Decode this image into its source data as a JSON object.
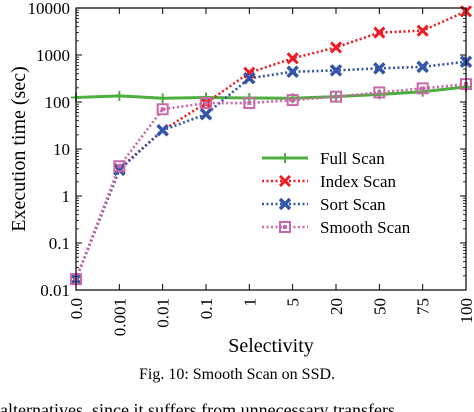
{
  "chart_data": {
    "type": "line",
    "xlabel": "Selectivity",
    "ylabel": "Execution time (sec)",
    "categories": [
      "0.0",
      "0.001",
      "0.01",
      "0.1",
      "1",
      "5",
      "20",
      "50",
      "75",
      "100"
    ],
    "y_scale": "log",
    "ylim": [
      0.01,
      10000
    ],
    "y_ticks": [
      "0.01",
      "0.1",
      "1",
      "10",
      "100",
      "1000",
      "10000"
    ],
    "grid": false,
    "legend_position": "center-right",
    "series": [
      {
        "name": "Full Scan",
        "color": "#4caf3e",
        "style": "solid",
        "marker": "plus",
        "values": [
          125,
          135,
          120,
          125,
          122,
          120,
          130,
          145,
          165,
          210
        ]
      },
      {
        "name": "Index Scan",
        "color": "#ee1c25",
        "style": "dotted",
        "marker": "x",
        "values": [
          0.017,
          3.8,
          25,
          95,
          420,
          850,
          1450,
          3000,
          3300,
          8500
        ]
      },
      {
        "name": "Sort Scan",
        "color": "#3355aa",
        "style": "dotted",
        "marker": "x-filled",
        "values": [
          0.017,
          3.6,
          25,
          55,
          320,
          440,
          470,
          520,
          560,
          720
        ]
      },
      {
        "name": "Smooth Scan",
        "color": "#cc66aa",
        "style": "dotted",
        "marker": "square",
        "values": [
          0.017,
          4.3,
          70,
          95,
          95,
          110,
          130,
          160,
          195,
          240
        ]
      }
    ]
  },
  "caption": "Fig. 10: Smooth Scan on SSD.",
  "body_text_fragment": "alternatives, since it suffers from unnecessary transfers"
}
